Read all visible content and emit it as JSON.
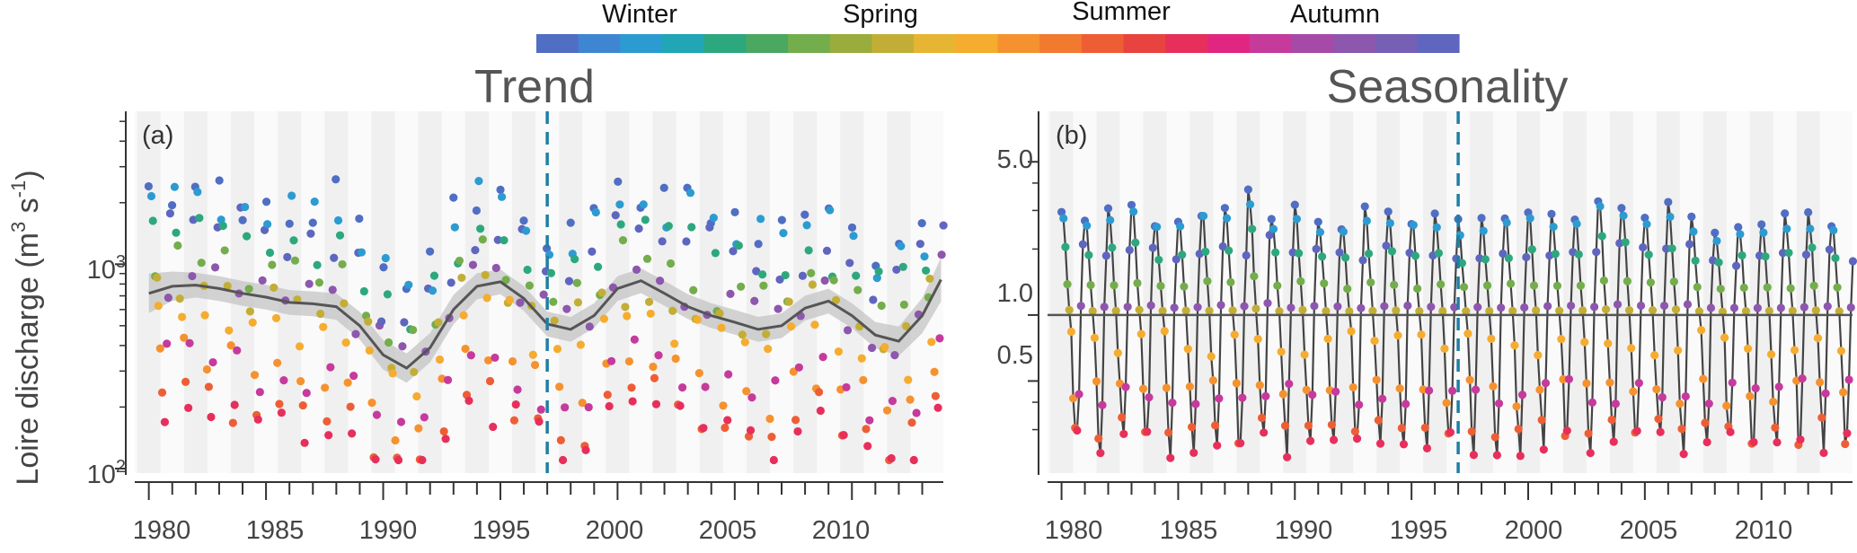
{
  "colorbar": {
    "labels": [
      "Winter",
      "Spring",
      "Summer",
      "Autumn"
    ],
    "colors": [
      "#4f6ec4",
      "#3f86d2",
      "#2c9bd1",
      "#20a6b4",
      "#2da87e",
      "#4aa860",
      "#74ad4c",
      "#9aac3c",
      "#c2ae36",
      "#e6b533",
      "#f5ac2f",
      "#f5922f",
      "#f17a2f",
      "#ee5e35",
      "#e9433f",
      "#e72f5b",
      "#e02680",
      "#c63a9c",
      "#a64aa8",
      "#8d57ad",
      "#7560b5",
      "#5e66bf"
    ]
  },
  "panel_a": {
    "title": "Trend",
    "tag": "(a)",
    "ylabel": "Loire discharge (m³ s⁻¹)",
    "ylabel_parts": {
      "base": "Loire discharge (m",
      "exp1": "3",
      "mid": " s",
      "exp2": "-1",
      "end": ")"
    },
    "yticks": [
      {
        "label": "10",
        "sup": "2",
        "value": 100
      },
      {
        "label": "10",
        "sup": "3",
        "value": 1000
      }
    ],
    "xticks": [
      "1980",
      "1985",
      "1990",
      "1995",
      "2000",
      "2005",
      "2010"
    ]
  },
  "panel_b": {
    "title": "Seasonality",
    "tag": "(b)",
    "yticks": [
      "0.5",
      "1.0",
      "5.0"
    ],
    "xticks": [
      "1980",
      "1985",
      "1990",
      "1995",
      "2000",
      "2005",
      "2010"
    ]
  },
  "chart_data": [
    {
      "type": "scatter",
      "title": "Trend",
      "xlabel": "",
      "ylabel": "Loire discharge (m³ s⁻¹)",
      "yscale": "log",
      "xlim": [
        1979.4,
        2013.9
      ],
      "ylim": [
        95,
        5600
      ],
      "vline": 1997,
      "note": "Monthly discharge points colored by month; smoothed trend line with grey confidence band",
      "trend": {
        "x": [
          1980,
          1981,
          1982,
          1983,
          1984,
          1985,
          1986,
          1987,
          1988,
          1989,
          1990,
          1991,
          1992,
          1993,
          1994,
          1995,
          1996,
          1997,
          1998,
          1999,
          2000,
          2001,
          2002,
          2003,
          2004,
          2005,
          2006,
          2007,
          2008,
          2009,
          2010,
          2011,
          2012,
          2013,
          2013.8
        ],
        "y": [
          720,
          780,
          790,
          760,
          720,
          690,
          650,
          640,
          620,
          500,
          360,
          310,
          390,
          600,
          780,
          820,
          680,
          510,
          480,
          560,
          760,
          830,
          720,
          620,
          560,
          520,
          480,
          500,
          610,
          660,
          560,
          450,
          420,
          560,
          840
        ],
        "band": [
          0.25,
          0.18,
          0.15,
          0.15,
          0.15,
          0.15,
          0.15,
          0.15,
          0.16,
          0.17,
          0.18,
          0.18,
          0.18,
          0.18,
          0.16,
          0.15,
          0.15,
          0.15,
          0.15,
          0.15,
          0.15,
          0.15,
          0.15,
          0.15,
          0.15,
          0.15,
          0.15,
          0.15,
          0.15,
          0.15,
          0.15,
          0.16,
          0.18,
          0.22,
          0.28
        ]
      },
      "monthly_points": "12 per year, 1980-2013; winter high (~1500-3500), summer low (~120-300)"
    },
    {
      "type": "line",
      "title": "Seasonality",
      "yscale": "log",
      "xlim": [
        1979.4,
        2013.9
      ],
      "ylim": [
        0.19,
        8.5
      ],
      "hline": 1.0,
      "vline": 1997,
      "seasonal_index": [
        3.0,
        2.7,
        2.0,
        1.4,
        1.05,
        0.75,
        0.45,
        0.3,
        0.26,
        0.45,
        1.1,
        2.0
      ],
      "annual_peak_factor": [
        1.05,
        0.9,
        0.95,
        1.1,
        0.85,
        0.9,
        1.0,
        0.95,
        1.35,
        0.85,
        1.0,
        0.9,
        0.8,
        1.0,
        0.95,
        0.85,
        0.9,
        0.8,
        0.85,
        0.9,
        0.95,
        0.95,
        0.9,
        1.2,
        1.05,
        0.95,
        1.1,
        0.85,
        0.75,
        0.8,
        0.85,
        0.9,
        0.95,
        0.8
      ]
    }
  ]
}
